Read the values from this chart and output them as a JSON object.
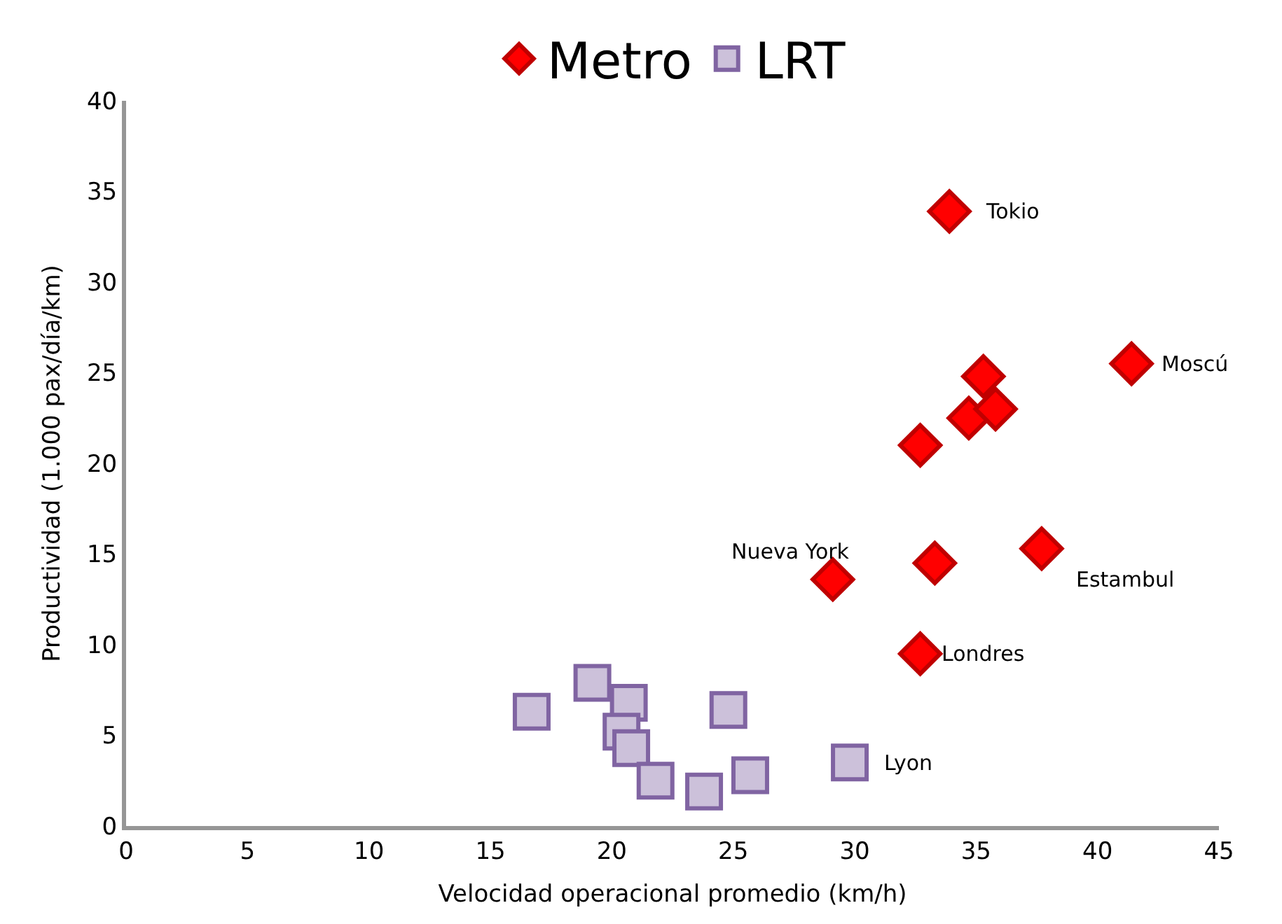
{
  "chart_data": {
    "type": "scatter",
    "xlabel": "Velocidad operacional promedio (km/h)",
    "ylabel": "Productividad (1.000 pax/día/km)",
    "xlim": [
      0,
      45
    ],
    "xticks": [
      0,
      5,
      10,
      15,
      20,
      25,
      30,
      35,
      40,
      45
    ],
    "ylim": [
      0,
      40
    ],
    "yticks": [
      0,
      5,
      10,
      15,
      20,
      25,
      30,
      35,
      40
    ],
    "legend": "top",
    "series": [
      {
        "name": "Metro",
        "color": "#ff0000",
        "marker": "diamond",
        "x": [
          33.9,
          41.4,
          35.3,
          34.7,
          35.8,
          32.7,
          37.7,
          33.3,
          29.1,
          32.7
        ],
        "values": [
          33.9,
          25.5,
          24.8,
          22.5,
          23.0,
          21.0,
          15.3,
          14.5,
          13.6,
          9.5
        ]
      },
      {
        "name": "LRT",
        "color": "#ccc1da",
        "marker": "square",
        "x": [
          16.7,
          19.2,
          20.7,
          24.8,
          20.4,
          20.8,
          21.8,
          23.8,
          25.7,
          29.8
        ],
        "values": [
          6.3,
          7.9,
          6.8,
          6.4,
          5.2,
          4.3,
          2.5,
          1.9,
          2.8,
          3.5
        ]
      }
    ],
    "annotations": [
      {
        "text": "Tokio",
        "x": 33.9,
        "y": 33.9
      },
      {
        "text": "Moscú",
        "x": 41.4,
        "y": 25.5
      },
      {
        "text": "Estambul",
        "x": 37.7,
        "y": 15.3
      },
      {
        "text": "Nueva York",
        "x": 29.1,
        "y": 13.6
      },
      {
        "text": "Londres",
        "x": 32.7,
        "y": 9.5
      },
      {
        "text": "Lyon",
        "x": 29.8,
        "y": 3.5
      }
    ]
  }
}
